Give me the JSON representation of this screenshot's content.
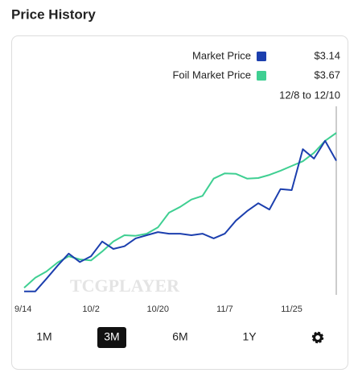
{
  "chart_data": {
    "type": "line",
    "title": "Price History",
    "watermark": "TCGPLAYER",
    "date_range": "12/8 to 12/10",
    "categories": [
      "9/14",
      null,
      null,
      null,
      null,
      null,
      "10/2",
      null,
      null,
      null,
      null,
      null,
      "10/20",
      null,
      null,
      null,
      null,
      null,
      "11/7",
      null,
      null,
      null,
      null,
      null,
      "11/25",
      null,
      null,
      null,
      null
    ],
    "series": [
      {
        "name": "Market Price",
        "color": "#1c3fae",
        "current": "$3.14",
        "values": [
          0.65,
          0.65,
          0.89,
          1.14,
          1.37,
          1.21,
          1.32,
          1.6,
          1.46,
          1.51,
          1.66,
          1.72,
          1.78,
          1.75,
          1.75,
          1.72,
          1.75,
          1.66,
          1.75,
          2.0,
          2.18,
          2.33,
          2.21,
          2.6,
          2.58,
          3.36,
          3.18,
          3.52,
          3.14
        ]
      },
      {
        "name": "Foil Market Price",
        "color": "#3fcf92",
        "current": "$3.67",
        "values": [
          0.72,
          0.91,
          1.03,
          1.2,
          1.32,
          1.26,
          1.24,
          1.41,
          1.6,
          1.72,
          1.71,
          1.75,
          1.87,
          2.15,
          2.26,
          2.4,
          2.47,
          2.8,
          2.9,
          2.89,
          2.8,
          2.81,
          2.87,
          2.95,
          3.04,
          3.13,
          3.29,
          3.52,
          3.67
        ]
      }
    ],
    "ylim": [
      0.6,
      3.9
    ],
    "ranges": [
      "1M",
      "3M",
      "6M",
      "1Y"
    ],
    "selected_range": 1
  }
}
